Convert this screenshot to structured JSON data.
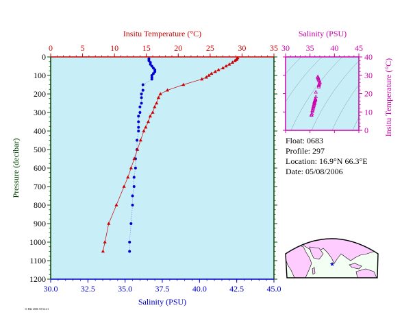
{
  "info": {
    "float": "Float:  0683",
    "profile": "Profile:  297",
    "location": "Location:  16.9°N  66.3°E",
    "date": "Date:  05/08/2006"
  },
  "footer_stamp": "11 Hkl 2006 10:52:41",
  "colors": {
    "temperature": "#cc0000",
    "salinity": "#0000cc",
    "ts": "#cc00aa",
    "pressure_axis": "#004400",
    "panel_bg": "#c8eef8",
    "land": "#ffccff",
    "ocean": "#ffffff"
  },
  "chart_data": [
    {
      "type": "line",
      "name": "profile",
      "title": "",
      "xlabel_top": "Insitu Temperature (°C)",
      "xlabel_bottom": "Salinity (PSU)",
      "ylabel": "Pressure (decibar)",
      "temp_lim": [
        0,
        35
      ],
      "sal_lim": [
        30.0,
        45.0
      ],
      "ylim": [
        0,
        1200
      ],
      "y_inverted": true,
      "temp_ticks": [
        0,
        5,
        10,
        15,
        20,
        25,
        30,
        35
      ],
      "sal_ticks": [
        30.0,
        32.5,
        35.0,
        37.5,
        40.0,
        42.5,
        45.0
      ],
      "y_ticks": [
        0,
        100,
        200,
        300,
        400,
        500,
        600,
        700,
        800,
        900,
        1000,
        1100,
        1200
      ],
      "temp_tick_labels": [
        "0",
        "5",
        "10",
        "15",
        "20",
        "25",
        "30",
        "35"
      ],
      "sal_tick_labels": [
        "30.0",
        "32.5",
        "35.0",
        "37.5",
        "40.0",
        "42.5",
        "45.0"
      ],
      "y_tick_labels": [
        "0",
        "100",
        "200",
        "300",
        "400",
        "500",
        "600",
        "700",
        "800",
        "900",
        "1000",
        "1100",
        "1200"
      ],
      "temperature": {
        "pressure": [
          5,
          10,
          15,
          20,
          30,
          40,
          50,
          60,
          70,
          80,
          90,
          100,
          110,
          120,
          150,
          180,
          200,
          220,
          250,
          270,
          300,
          320,
          350,
          380,
          400,
          450,
          500,
          550,
          600,
          650,
          700,
          800,
          900,
          1000,
          1050
        ],
        "values": [
          29.3,
          29.2,
          29.1,
          28.9,
          28.5,
          28.0,
          27.5,
          27.0,
          26.3,
          25.8,
          25.2,
          24.8,
          24.4,
          23.7,
          20.8,
          18.3,
          17.2,
          16.9,
          16.6,
          16.3,
          16.0,
          15.6,
          15.3,
          14.9,
          14.6,
          14.1,
          13.6,
          13.1,
          12.6,
          12.1,
          11.5,
          10.3,
          9.1,
          8.5,
          8.2
        ]
      },
      "salinity": {
        "pressure": [
          10,
          20,
          30,
          40,
          50,
          60,
          70,
          80,
          90,
          100,
          110,
          120,
          150,
          180,
          200,
          220,
          250,
          270,
          300,
          320,
          350,
          380,
          400,
          450,
          500,
          550,
          600,
          650,
          700,
          750,
          800,
          900,
          1000,
          1050
        ],
        "values": [
          36.6,
          36.6,
          36.7,
          36.7,
          36.8,
          36.9,
          37.0,
          37.0,
          36.9,
          36.8,
          36.8,
          36.8,
          36.2,
          36.2,
          36.1,
          36.1,
          36.1,
          36.0,
          36.0,
          35.9,
          35.9,
          35.9,
          35.9,
          35.8,
          35.8,
          35.7,
          35.7,
          35.6,
          35.6,
          35.5,
          35.5,
          35.4,
          35.3,
          35.3
        ]
      }
    },
    {
      "type": "scatter",
      "name": "ts-diagram",
      "title": "",
      "xlabel": "Salinity (PSU)",
      "ylabel": "Insitu Temperature (°C)",
      "xlim": [
        30,
        45
      ],
      "ylim": [
        0,
        40
      ],
      "x_ticks": [
        30,
        35,
        40,
        45
      ],
      "y_ticks": [
        0,
        10,
        20,
        30,
        40
      ],
      "x_tick_labels": [
        "30",
        "35",
        "40",
        "45"
      ],
      "y_tick_labels": [
        "0",
        "10",
        "20",
        "30",
        "40"
      ],
      "points": {
        "salinity": [
          36.6,
          36.6,
          36.7,
          36.7,
          36.8,
          36.9,
          37.0,
          37.0,
          36.9,
          36.8,
          36.8,
          36.8,
          36.2,
          36.2,
          36.1,
          36.1,
          36.1,
          36.0,
          36.0,
          35.9,
          35.9,
          35.9,
          35.9,
          35.8,
          35.8,
          35.7,
          35.7,
          35.6,
          35.6,
          35.5,
          35.5,
          35.4,
          35.3,
          35.3
        ],
        "temperature": [
          29.2,
          28.9,
          28.5,
          28.0,
          27.5,
          27.0,
          26.3,
          25.8,
          25.2,
          24.8,
          24.4,
          23.7,
          20.8,
          18.3,
          17.2,
          16.9,
          16.6,
          16.3,
          16.0,
          15.6,
          15.3,
          14.9,
          14.6,
          14.1,
          13.6,
          13.1,
          12.6,
          12.1,
          11.5,
          10.9,
          10.3,
          9.1,
          8.5,
          8.2
        ]
      }
    }
  ]
}
